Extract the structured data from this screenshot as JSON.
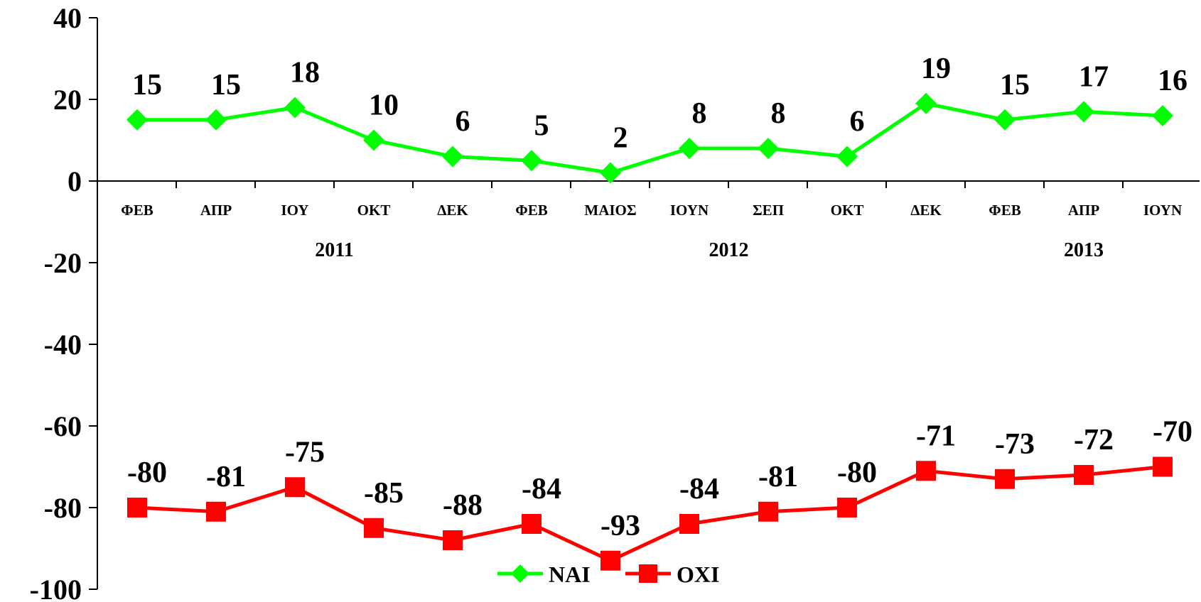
{
  "chart_data": {
    "type": "line",
    "categories": [
      "ΦΕΒ",
      "ΑΠΡ",
      "ΙΟΥ",
      "ΟΚΤ",
      "ΔΕΚ",
      "ΦΕΒ",
      "ΜΑΙΟΣ",
      "ΙΟΥΝ",
      "ΣΕΠ",
      "ΟΚΤ",
      "ΔΕΚ",
      "ΦΕΒ",
      "ΑΠΡ",
      "ΙΟΥΝ"
    ],
    "year_labels": [
      {
        "label": "2011",
        "from_index": 0,
        "to_index": 5
      },
      {
        "label": "2012",
        "from_index": 5,
        "to_index": 10
      },
      {
        "label": "2013",
        "from_index": 11,
        "to_index": 13
      }
    ],
    "series": [
      {
        "name": "ΝΑΙ",
        "color": "#00ff00",
        "marker": "diamond",
        "values": [
          15,
          15,
          18,
          10,
          6,
          5,
          2,
          8,
          8,
          6,
          19,
          15,
          17,
          16
        ]
      },
      {
        "name": "ΟΧΙ",
        "color": "#ff0000",
        "marker": "square",
        "values": [
          -80,
          -81,
          -75,
          -85,
          -88,
          -84,
          -93,
          -84,
          -81,
          -80,
          -71,
          -73,
          -72,
          -70
        ]
      }
    ],
    "ylim": [
      -100,
      40
    ],
    "yticks": [
      40,
      20,
      0,
      -20,
      -40,
      -60,
      -80,
      -100
    ],
    "grid": false,
    "legend_position": "bottom-center"
  }
}
